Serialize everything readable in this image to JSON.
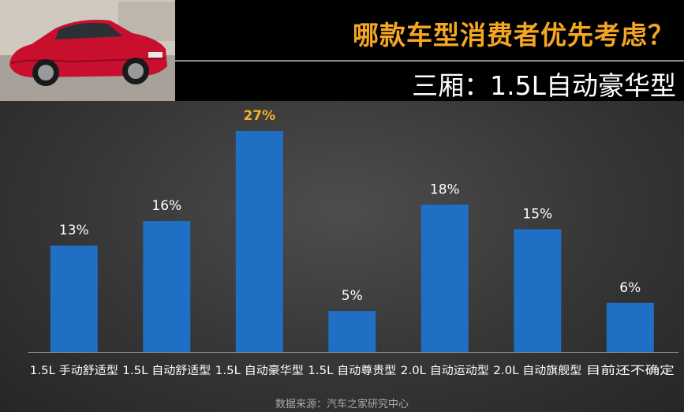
{
  "header": {
    "headline": "哪款车型消费者优先考虑？",
    "subhead": "三厢：1.5L自动豪华型"
  },
  "source_note": "数据来源：汽车之家研究中心",
  "colors": {
    "bar": "#1f6fc4",
    "highlight_label": "#f5b323",
    "label": "#ffffff",
    "headline": "#f5a623"
  },
  "chart_data": {
    "type": "bar",
    "categories": [
      "1.5L 手动舒适型",
      "1.5L 自动舒适型",
      "1.5L 自动豪华型",
      "1.5L 自动尊贵型",
      "2.0L 自动运动型",
      "2.0L 自动旗舰型",
      "目前还不确定"
    ],
    "values": [
      13,
      16,
      27,
      5,
      18,
      15,
      6
    ],
    "data_labels": [
      "13%",
      "16%",
      "27%",
      "5%",
      "18%",
      "15%",
      "6%"
    ],
    "highlight_index": 2,
    "title": "",
    "xlabel": "",
    "ylabel": "",
    "ylim": [
      0,
      27
    ],
    "grid": false,
    "legend": "none"
  }
}
